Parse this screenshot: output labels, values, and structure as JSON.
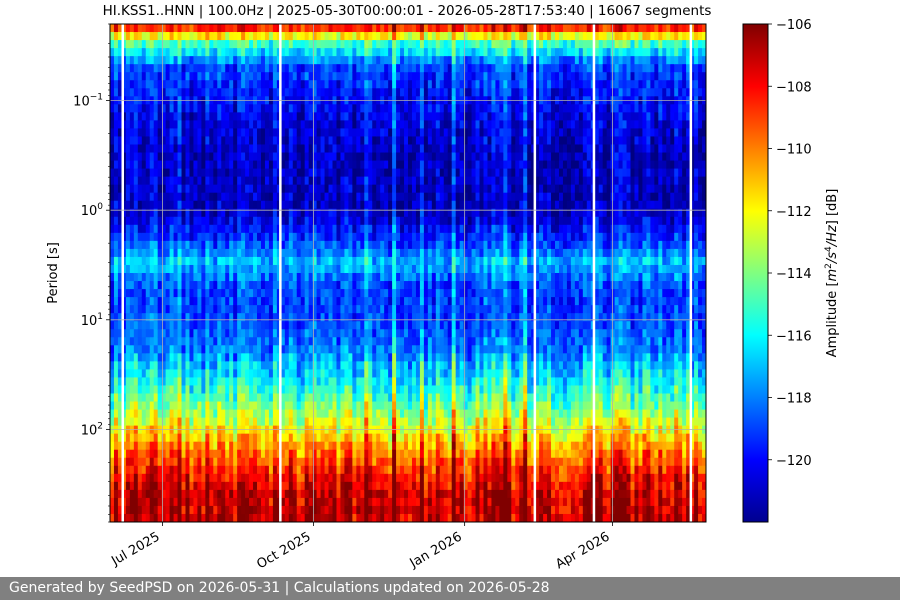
{
  "footer_text": "Generated by SeedPSD on 2026-05-31 | Calculations updated on 2026-05-28",
  "chart_data": {
    "type": "heatmap",
    "title": "HI.KSS1..HNN | 100.0Hz | 2025-05-30T00:00:01 - 2026-05-28T17:53:40 | 16067 segments",
    "xlabel": "",
    "ylabel": "Period [s]",
    "x_range": [
      "2025-05-30",
      "2026-05-28"
    ],
    "x_ticks": [
      {
        "date": "2025-07-01",
        "label": "Jul 2025"
      },
      {
        "date": "2025-10-01",
        "label": "Oct 2025"
      },
      {
        "date": "2026-01-01",
        "label": "Jan 2026"
      },
      {
        "date": "2026-04-01",
        "label": "Apr 2026"
      }
    ],
    "y_scale": "log",
    "y_inverted": true,
    "y_range": [
      0.02,
      700
    ],
    "y_ticks": [
      {
        "value": 0.1,
        "base": "10",
        "exp": "−1"
      },
      {
        "value": 1,
        "base": "10",
        "exp": "0"
      },
      {
        "value": 10,
        "base": "10",
        "exp": "1"
      },
      {
        "value": 100,
        "base": "10",
        "exp": "2"
      }
    ],
    "grid": true,
    "colormap": "jet",
    "colorbar": {
      "label": "Amplitude [m²/s⁴/Hz] [dB]",
      "label_parts": {
        "pre": "Amplitude [",
        "m": "m",
        "m_exp": "2",
        "s": "/s",
        "s_exp": "4",
        "hz": "/Hz",
        "post": "] [dB]"
      },
      "range": [
        -122,
        -106
      ],
      "ticks": [
        -106,
        -108,
        -110,
        -112,
        -114,
        -116,
        -118,
        -120
      ],
      "tick_labels": [
        "−106",
        "−108",
        "−110",
        "−112",
        "−114",
        "−116",
        "−118",
        "−120"
      ]
    },
    "amplitude_profile": [
      {
        "period": 0.02,
        "db": -107
      },
      {
        "period": 0.03,
        "db": -115
      },
      {
        "period": 0.05,
        "db": -119
      },
      {
        "period": 0.1,
        "db": -120
      },
      {
        "period": 0.3,
        "db": -121
      },
      {
        "period": 1,
        "db": -121
      },
      {
        "period": 2,
        "db": -119
      },
      {
        "period": 3,
        "db": -117
      },
      {
        "period": 5,
        "db": -119
      },
      {
        "period": 10,
        "db": -119
      },
      {
        "period": 20,
        "db": -118
      },
      {
        "period": 50,
        "db": -115
      },
      {
        "period": 100,
        "db": -112
      },
      {
        "period": 200,
        "db": -109
      },
      {
        "period": 400,
        "db": -107
      },
      {
        "period": 700,
        "db": -107
      }
    ],
    "data_gaps": [
      "2025-06-06",
      "2025-09-10",
      "2026-02-12",
      "2026-03-20",
      "2026-05-18"
    ]
  }
}
